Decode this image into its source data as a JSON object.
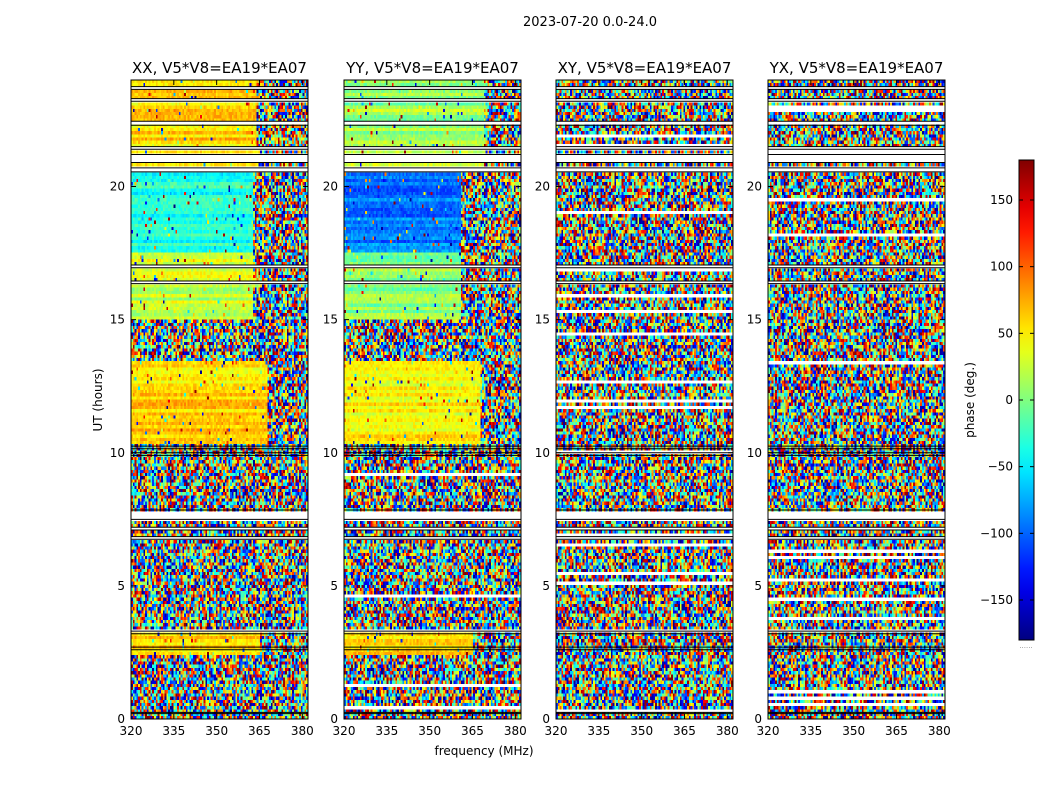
{
  "chart_data": {
    "type": "heatmap",
    "suptitle": "2023-07-20 0.0-24.0",
    "xlabel": "frequency (MHz)",
    "ylabel": "UT (hours)",
    "xlim": [
      320,
      382
    ],
    "ylim": [
      0,
      24
    ],
    "xticks": [
      320,
      335,
      350,
      365,
      380
    ],
    "yticks": [
      0,
      5,
      10,
      15,
      20
    ],
    "colormap": "jet",
    "colorbar": {
      "label": "phase (deg.)",
      "range": [
        -180,
        180
      ],
      "ticks": [
        150,
        100,
        50,
        0,
        -50,
        -100,
        -150
      ],
      "tick_labels": [
        "150",
        "100",
        "50",
        "0",
        "−50",
        "−100",
        "−150"
      ],
      "footer": "......"
    },
    "panels": [
      {
        "title": "XX, V5*V8=EA19*EA07",
        "pol": "XX"
      },
      {
        "title": "YY, V5*V8=EA19*EA07",
        "pol": "YY"
      },
      {
        "title": "XY, V5*V8=EA19*EA07",
        "pol": "XY"
      },
      {
        "title": "YX, V5*V8=EA19*EA07",
        "pol": "YX"
      }
    ],
    "blank_rows_hours": [
      [
        23.65,
        23.75
      ],
      [
        23.2,
        23.3
      ],
      [
        22.3,
        22.45
      ],
      [
        21.4,
        21.5
      ],
      [
        20.9,
        21.2
      ],
      [
        20.55,
        20.7
      ],
      [
        16.95,
        17.05
      ],
      [
        16.35,
        16.45
      ],
      [
        10.15,
        10.25
      ],
      [
        9.9,
        10.0
      ],
      [
        7.5,
        7.85
      ],
      [
        7.1,
        7.2
      ],
      [
        6.75,
        6.85
      ],
      [
        3.2,
        3.3
      ],
      [
        2.6,
        2.7
      ],
      [
        0.2,
        0.25
      ]
    ],
    "coherent_segments": [
      {
        "pol": "XX",
        "t_range": [
          20.7,
          24.0
        ],
        "phase_deg": 60,
        "rfi_from_mhz": 364
      },
      {
        "pol": "XX",
        "t_range": [
          17.5,
          20.7
        ],
        "phase_deg": -35,
        "rfi_from_mhz": 363
      },
      {
        "pol": "XX",
        "t_range": [
          15.0,
          17.5
        ],
        "phase_deg": 25,
        "rfi_from_mhz": 363
      },
      {
        "pol": "XX",
        "t_range": [
          10.3,
          13.4
        ],
        "phase_deg": 60,
        "rfi_from_mhz": 368
      },
      {
        "pol": "XX",
        "t_range": [
          2.4,
          3.3
        ],
        "phase_deg": 60,
        "rfi_from_mhz": 365
      },
      {
        "pol": "YY",
        "t_range": [
          20.7,
          24.0
        ],
        "phase_deg": 10,
        "rfi_from_mhz": 369
      },
      {
        "pol": "YY",
        "t_range": [
          17.5,
          20.7
        ],
        "phase_deg": -90,
        "rfi_from_mhz": 361
      },
      {
        "pol": "YY",
        "t_range": [
          15.0,
          17.5
        ],
        "phase_deg": 5,
        "rfi_from_mhz": 361
      },
      {
        "pol": "YY",
        "t_range": [
          10.3,
          13.4
        ],
        "phase_deg": 50,
        "rfi_from_mhz": 368
      },
      {
        "pol": "YY",
        "t_range": [
          2.4,
          3.3
        ],
        "phase_deg": 60,
        "rfi_from_mhz": 365
      }
    ]
  }
}
